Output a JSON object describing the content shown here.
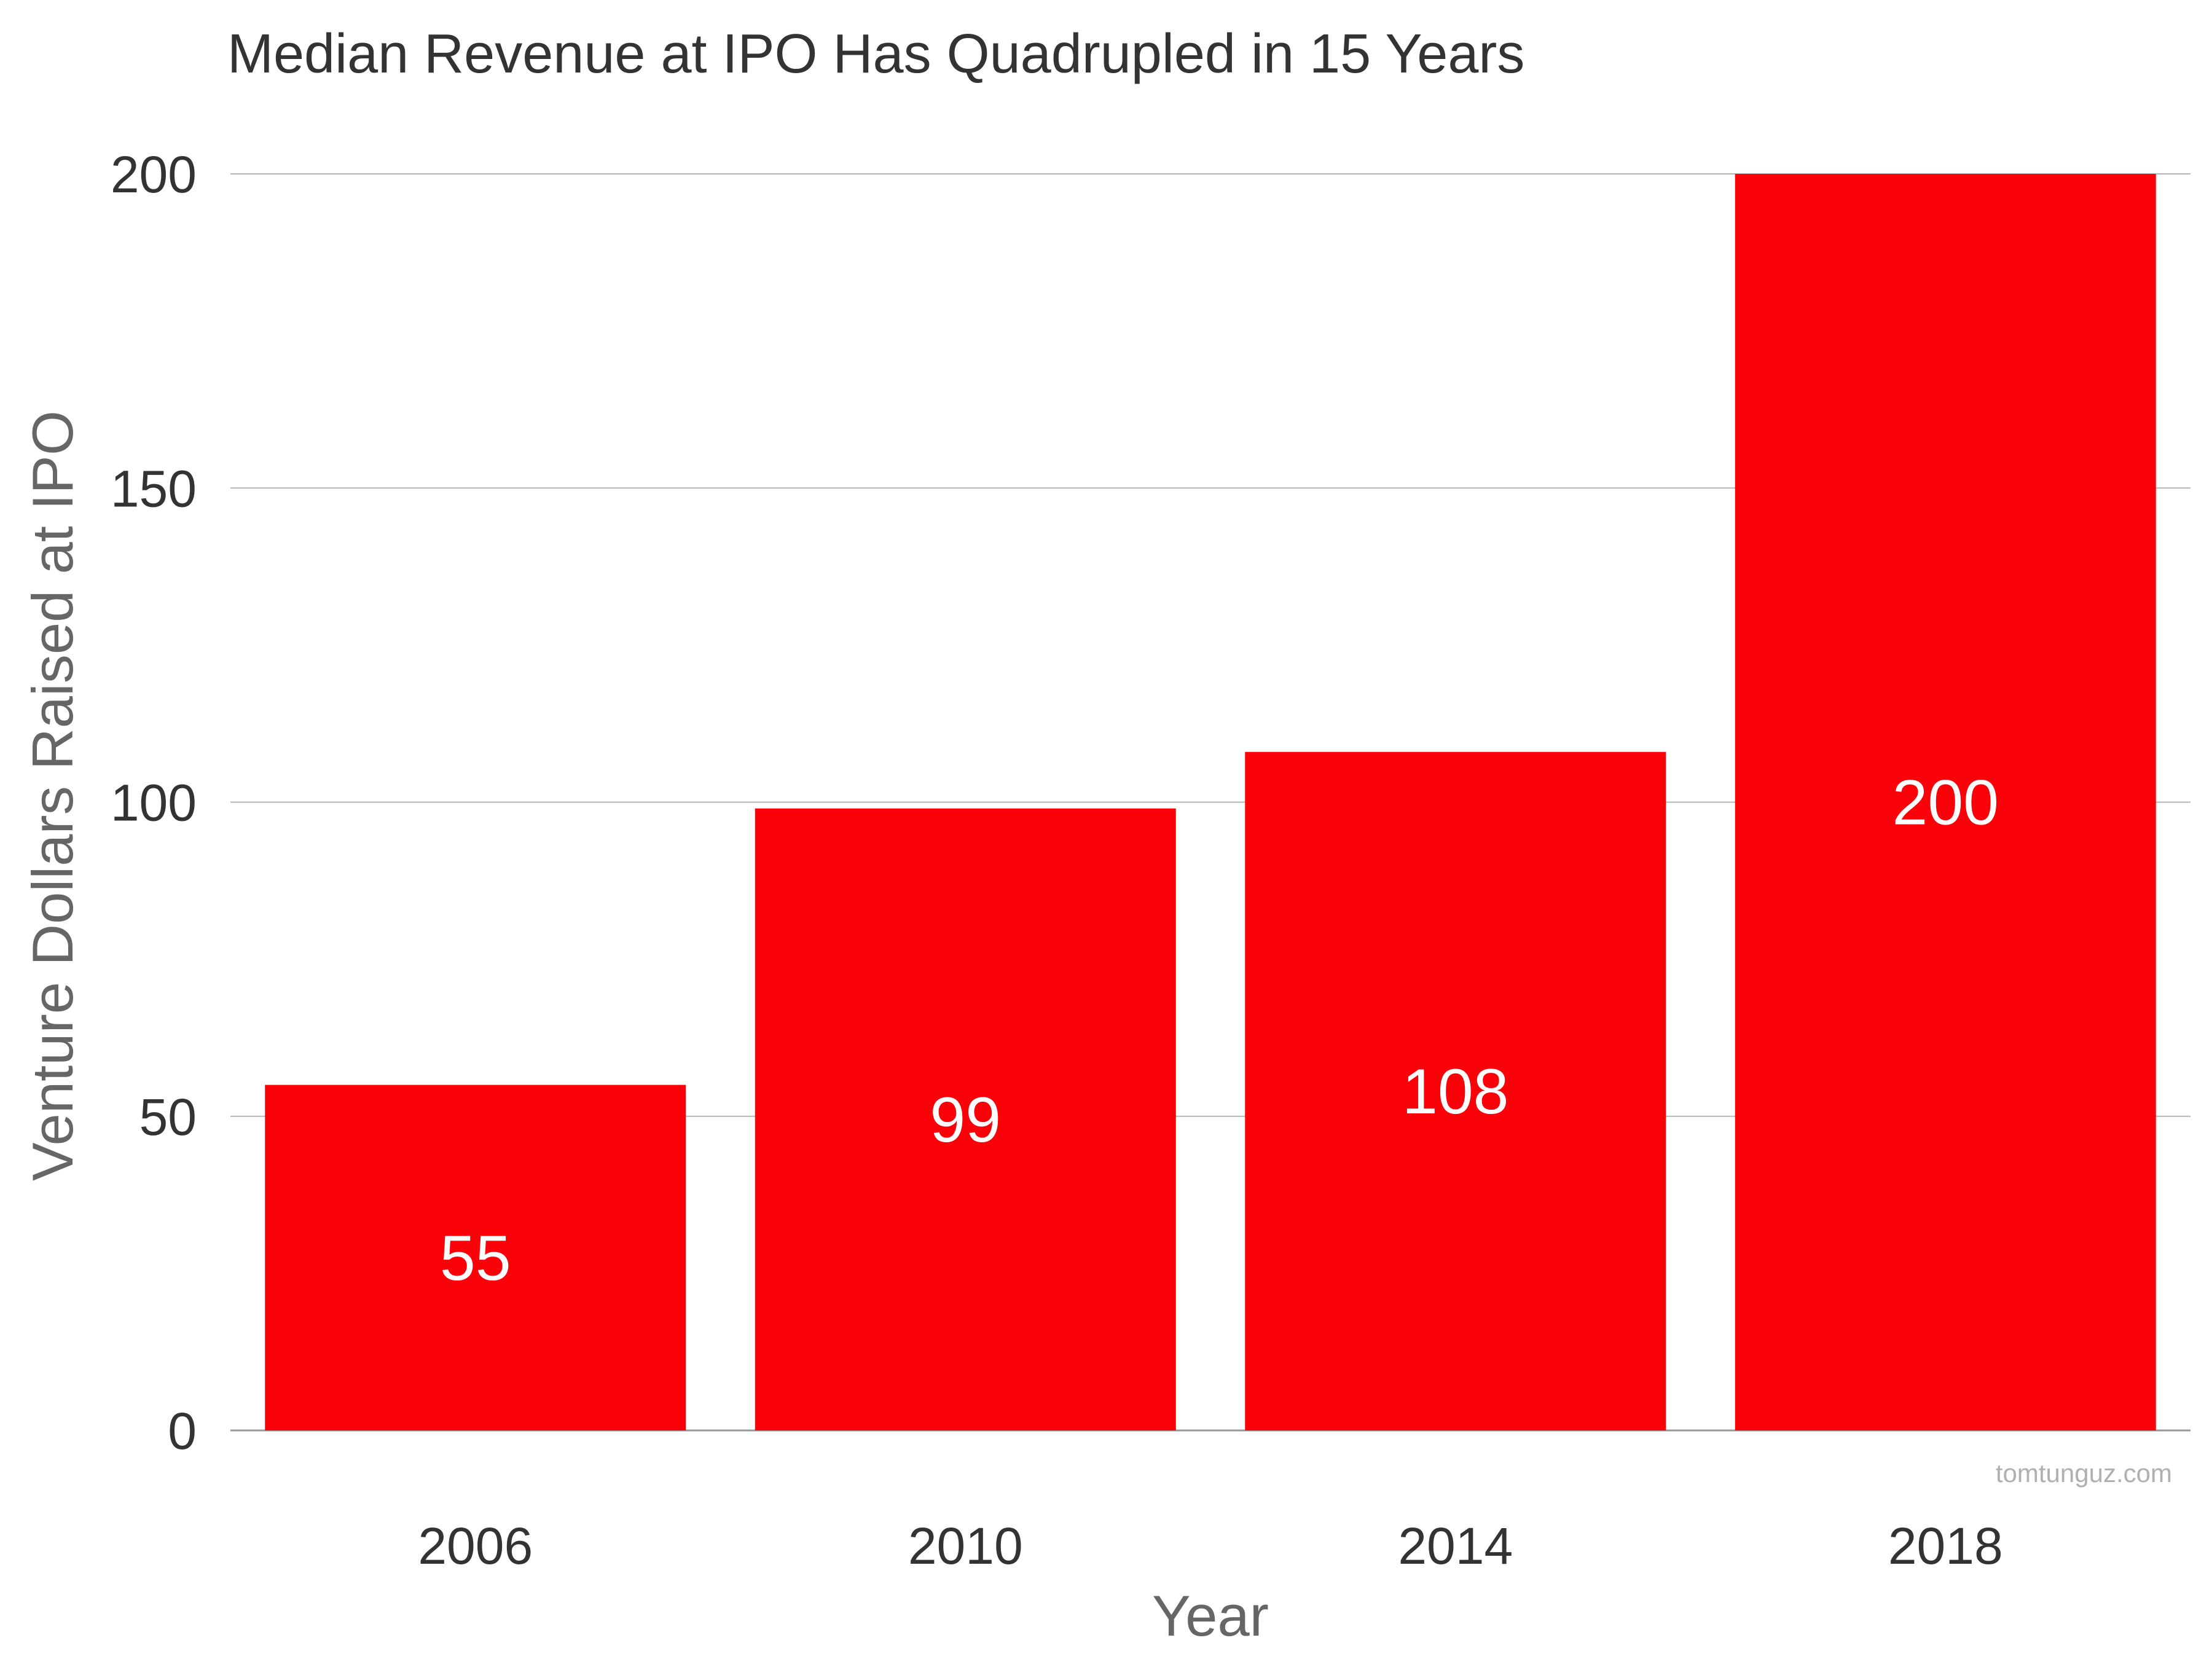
{
  "chart_data": {
    "type": "bar",
    "title": "Median Revenue at IPO Has Quadrupled in 15 Years",
    "xlabel": "Year",
    "ylabel": "Venture Dollars Raised at IPO",
    "categories": [
      "2006",
      "2010",
      "2014",
      "2018"
    ],
    "values": [
      55,
      99,
      108,
      200
    ],
    "data_labels": [
      "55",
      "99",
      "108",
      "200"
    ],
    "ylim": [
      0,
      200
    ],
    "yticks": [
      0,
      50,
      100,
      150,
      200
    ],
    "ytick_labels": [
      "0",
      "50",
      "100",
      "150",
      "200"
    ],
    "grid": true,
    "bar_color": "#fa0209"
  },
  "watermark": "tomtunguz.com"
}
